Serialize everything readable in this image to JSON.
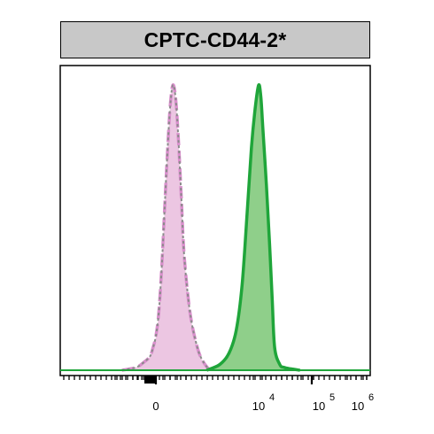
{
  "chart_data": {
    "type": "area",
    "title": "CPTC-CD44-2*",
    "xlabel": "",
    "ylabel": "",
    "x_scale": "biexponential",
    "x_ticks": [
      {
        "value": "0",
        "base": "0",
        "exp": ""
      },
      {
        "value": "10^4",
        "base": "10",
        "exp": "4"
      },
      {
        "value": "10^5",
        "base": "10",
        "exp": "5"
      },
      {
        "value": "10^6",
        "base": "10",
        "exp": "6"
      }
    ],
    "ylim": [
      0,
      100
    ],
    "grid": false,
    "colors": {
      "control_fill": "#ecc6e2",
      "control_line": "#d98fcc",
      "control_dotted": "#8a8a8a",
      "stained_fill": "#8fcf8a",
      "stained_line": "#1fa53a",
      "title_bg": "#c8c8c8"
    },
    "series": [
      {
        "role": "control",
        "x": [
          "-1200",
          "-700",
          "-400",
          "-200",
          "-100",
          "0",
          "100",
          "200",
          "300",
          "400",
          "500",
          "600",
          "700",
          "800",
          "900",
          "1000",
          "1200",
          "1500",
          "1800",
          "2200"
        ],
        "y": [
          0,
          1,
          3,
          5,
          8,
          12,
          20,
          35,
          55,
          75,
          92,
          100,
          95,
          80,
          60,
          40,
          20,
          8,
          3,
          0
        ]
      },
      {
        "role": "stained",
        "x": [
          "2000",
          "3000",
          "4000",
          "5000",
          "6000",
          "7000",
          "8000",
          "9000",
          "10000",
          "11000",
          "12000",
          "14000",
          "16000",
          "18000",
          "20000",
          "25000",
          "30000",
          "40000",
          "60000"
        ],
        "y": [
          0,
          2,
          6,
          14,
          30,
          55,
          78,
          92,
          100,
          96,
          85,
          65,
          45,
          25,
          8,
          2,
          1,
          0.5,
          0
        ]
      }
    ]
  }
}
